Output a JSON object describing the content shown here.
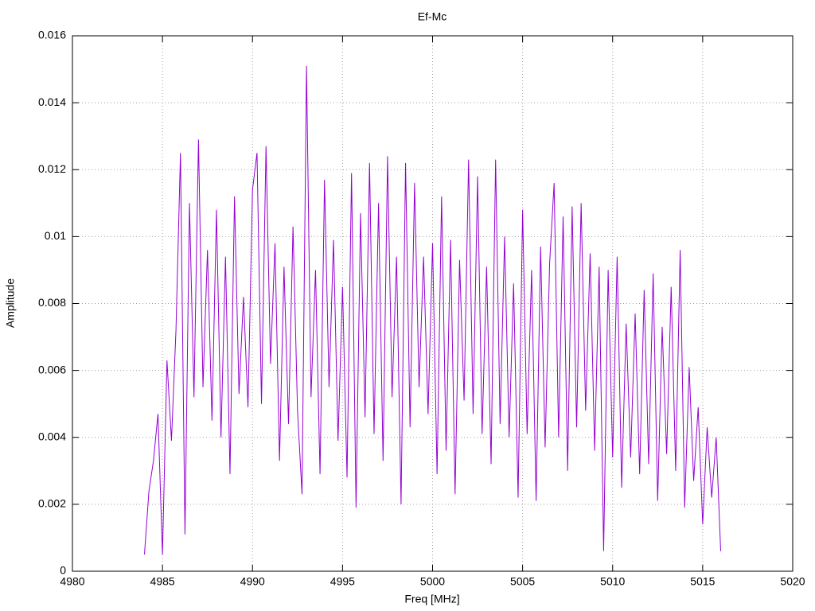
{
  "chart_data": {
    "type": "line",
    "title": "Ef-Mc",
    "x_label": "Freq [MHz]",
    "y_label": "Amplitude",
    "color": "#9400d3",
    "grid": true,
    "xlim": [
      4980,
      5020
    ],
    "xticks": [
      4980,
      4985,
      4990,
      4995,
      5000,
      5005,
      5010,
      5015,
      5020
    ],
    "ylim": [
      0,
      0.016
    ],
    "yticks": [
      0,
      0.002,
      0.004,
      0.006,
      0.008,
      0.01,
      0.012,
      0.014,
      0.016
    ],
    "x": [
      4984,
      4984.25,
      4984.5,
      4984.75,
      4985,
      4985.25,
      4985.5,
      4985.75,
      4986,
      4986.25,
      4986.5,
      4986.75,
      4987,
      4987.25,
      4987.5,
      4987.75,
      4988,
      4988.25,
      4988.5,
      4988.75,
      4989,
      4989.25,
      4989.5,
      4989.75,
      4990,
      4990.25,
      4990.5,
      4990.75,
      4991,
      4991.25,
      4991.5,
      4991.75,
      4992,
      4992.25,
      4992.5,
      4992.75,
      4993,
      4993.25,
      4993.5,
      4993.75,
      4994,
      4994.25,
      4994.5,
      4994.75,
      4995,
      4995.25,
      4995.5,
      4995.75,
      4996,
      4996.25,
      4996.5,
      4996.75,
      4997,
      4997.25,
      4997.5,
      4997.75,
      4998,
      4998.25,
      4998.5,
      4998.75,
      4999,
      4999.25,
      4999.5,
      4999.75,
      5000,
      5000.25,
      5000.5,
      5000.75,
      5001,
      5001.25,
      5001.5,
      5001.75,
      5002,
      5002.25,
      5002.5,
      5002.75,
      5003,
      5003.25,
      5003.5,
      5003.75,
      5004,
      5004.25,
      5004.5,
      5004.75,
      5005,
      5005.25,
      5005.5,
      5005.75,
      5006,
      5006.25,
      5006.5,
      5006.75,
      5007,
      5007.25,
      5007.5,
      5007.75,
      5008,
      5008.25,
      5008.5,
      5008.75,
      5009,
      5009.25,
      5009.5,
      5009.75,
      5010,
      5010.25,
      5010.5,
      5010.75,
      5011,
      5011.25,
      5011.5,
      5011.75,
      5012,
      5012.25,
      5012.5,
      5012.75,
      5013,
      5013.25,
      5013.5,
      5013.75,
      5014,
      5014.25,
      5014.5,
      5014.75,
      5015,
      5015.25,
      5015.5,
      5015.75,
      5016
    ],
    "values": [
      0.0005,
      0.0024,
      0.0033,
      0.0047,
      0.0005,
      0.0063,
      0.0039,
      0.0072,
      0.0125,
      0.0011,
      0.011,
      0.0052,
      0.0129,
      0.0055,
      0.0096,
      0.0045,
      0.0108,
      0.004,
      0.0094,
      0.0029,
      0.0112,
      0.0053,
      0.0082,
      0.0049,
      0.0114,
      0.0125,
      0.005,
      0.0127,
      0.0062,
      0.0098,
      0.0033,
      0.0091,
      0.0044,
      0.0103,
      0.0048,
      0.0023,
      0.0151,
      0.0052,
      0.009,
      0.0029,
      0.0117,
      0.0055,
      0.0099,
      0.0039,
      0.0085,
      0.0028,
      0.0119,
      0.0019,
      0.0107,
      0.0046,
      0.0122,
      0.0041,
      0.011,
      0.0033,
      0.0124,
      0.0052,
      0.0094,
      0.002,
      0.0122,
      0.0043,
      0.0116,
      0.0055,
      0.0094,
      0.0047,
      0.0098,
      0.0029,
      0.0112,
      0.0036,
      0.0099,
      0.0023,
      0.0093,
      0.0051,
      0.0123,
      0.0047,
      0.0118,
      0.0041,
      0.0091,
      0.0032,
      0.0123,
      0.0044,
      0.01,
      0.004,
      0.0086,
      0.0022,
      0.0108,
      0.0041,
      0.009,
      0.0021,
      0.0097,
      0.0037,
      0.0092,
      0.0116,
      0.004,
      0.0106,
      0.003,
      0.0109,
      0.0043,
      0.011,
      0.0048,
      0.0095,
      0.0036,
      0.0091,
      0.0006,
      0.009,
      0.0034,
      0.0094,
      0.0025,
      0.0074,
      0.0034,
      0.0077,
      0.0029,
      0.0084,
      0.0032,
      0.0089,
      0.0021,
      0.0073,
      0.0035,
      0.0085,
      0.003,
      0.0096,
      0.0019,
      0.0061,
      0.0027,
      0.0049,
      0.0014,
      0.0043,
      0.0022,
      0.004,
      0.0006
    ]
  }
}
